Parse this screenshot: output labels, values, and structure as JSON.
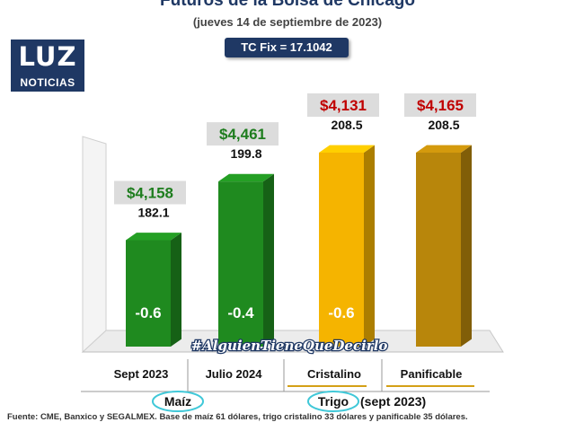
{
  "header": {
    "title": "Futuros de la Bolsa de Chicago",
    "subtitle": "(jueves 14 de septiembre de 2023)",
    "tc_fix": "TC Fix = 17.1042"
  },
  "logo": {
    "top": "LUZ",
    "bottom": "NOTICIAS"
  },
  "watermark": "#AlguienTieneQueDecirlo",
  "footer": "Fuente: CME, Banxico y SEGALMEX. Base de maíz 61 dólares, trigo cristalino 33 dólares y panificable 35 dólares.",
  "colors": {
    "green": "#1f8a1f",
    "yellow": "#f5b400",
    "gold": "#b8860b",
    "price_green": "#1e7d1e",
    "price_red": "#c00000"
  },
  "chart_data": {
    "type": "bar",
    "categories": [
      "Sept 2023",
      "Julio 2024",
      "Cristalino",
      "Panificable"
    ],
    "values": [
      182.1,
      199.8,
      208.5,
      208.5
    ],
    "value_labels": [
      "182.1",
      "199.8",
      "208.5",
      "208.5"
    ],
    "price_labels": [
      "$4,158",
      "$4,461",
      "$4,131",
      "$4,165"
    ],
    "change_labels": [
      "-0.6",
      "-0.4",
      "-0.6",
      ""
    ],
    "bar_colors": [
      "green",
      "green",
      "yellow",
      "gold"
    ],
    "price_colors": [
      "price_green",
      "price_green",
      "price_red",
      "price_red"
    ],
    "groups": [
      {
        "label": "Maíz",
        "extra": "",
        "categories": [
          0,
          1
        ]
      },
      {
        "label": "Trigo",
        "extra": "(sept 2023)",
        "categories": [
          2,
          3
        ]
      }
    ],
    "ylim": [
      150,
      215
    ],
    "grid": false,
    "legend": "none"
  }
}
